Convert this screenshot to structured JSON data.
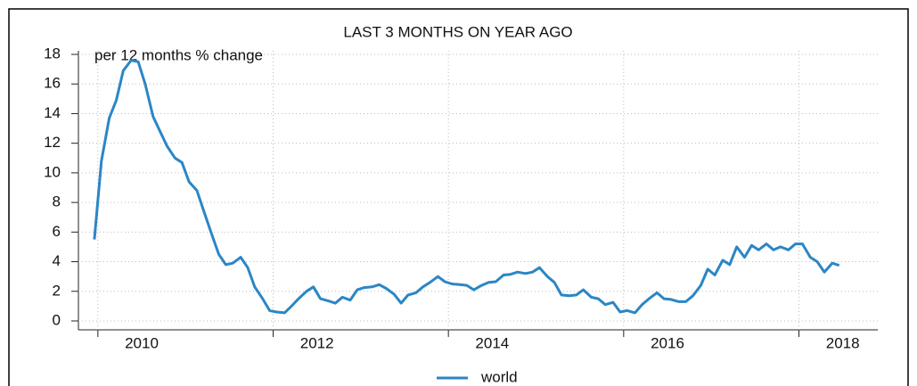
{
  "chart_data": {
    "type": "line",
    "title": "LAST 3 MONTHS ON YEAR AGO",
    "subtitle": "per 12 months % change",
    "x": [
      2009.96,
      2010.04,
      2010.13,
      2010.21,
      2010.29,
      2010.38,
      2010.46,
      2010.54,
      2010.63,
      2010.71,
      2010.79,
      2010.88,
      2010.96,
      2011.04,
      2011.13,
      2011.21,
      2011.29,
      2011.38,
      2011.46,
      2011.54,
      2011.63,
      2011.71,
      2011.79,
      2011.88,
      2011.96,
      2012.04,
      2012.13,
      2012.21,
      2012.29,
      2012.38,
      2012.46,
      2012.54,
      2012.63,
      2012.71,
      2012.79,
      2012.88,
      2012.96,
      2013.04,
      2013.13,
      2013.21,
      2013.29,
      2013.38,
      2013.46,
      2013.54,
      2013.63,
      2013.71,
      2013.79,
      2013.88,
      2013.96,
      2014.04,
      2014.13,
      2014.21,
      2014.29,
      2014.38,
      2014.46,
      2014.54,
      2014.63,
      2014.71,
      2014.79,
      2014.88,
      2014.96,
      2015.04,
      2015.13,
      2015.21,
      2015.29,
      2015.38,
      2015.46,
      2015.54,
      2015.63,
      2015.71,
      2015.79,
      2015.88,
      2015.96,
      2016.04,
      2016.13,
      2016.21,
      2016.29,
      2016.38,
      2016.46,
      2016.54,
      2016.63,
      2016.71,
      2016.79,
      2016.88,
      2016.96,
      2017.04,
      2017.13,
      2017.21,
      2017.29,
      2017.38,
      2017.46,
      2017.54,
      2017.63,
      2017.71,
      2017.79,
      2017.88,
      2017.96,
      2018.04,
      2018.13,
      2018.21,
      2018.29,
      2018.38,
      2018.46
    ],
    "series": [
      {
        "name": "world",
        "color": "#2b86c5",
        "values": [
          5.5,
          10.8,
          13.7,
          14.9,
          16.9,
          17.6,
          17.5,
          16.0,
          13.8,
          12.8,
          11.8,
          11.0,
          10.7,
          9.4,
          8.8,
          7.4,
          6.0,
          4.5,
          3.8,
          3.9,
          4.3,
          3.6,
          2.3,
          1.5,
          0.7,
          0.6,
          0.55,
          1.0,
          1.5,
          2.0,
          2.3,
          1.5,
          1.35,
          1.2,
          1.6,
          1.4,
          2.1,
          2.25,
          2.3,
          2.45,
          2.2,
          1.8,
          1.2,
          1.75,
          1.9,
          2.3,
          2.6,
          3.0,
          2.65,
          2.5,
          2.45,
          2.4,
          2.1,
          2.4,
          2.6,
          2.65,
          3.1,
          3.15,
          3.3,
          3.2,
          3.3,
          3.6,
          3.0,
          2.6,
          1.75,
          1.7,
          1.75,
          2.1,
          1.6,
          1.5,
          1.1,
          1.25,
          0.6,
          0.7,
          0.55,
          1.1,
          1.5,
          1.9,
          1.5,
          1.45,
          1.3,
          1.3,
          1.7,
          2.4,
          3.5,
          3.1,
          4.1,
          3.8,
          5.0,
          4.3,
          5.1,
          4.8,
          5.2,
          4.8,
          5.0,
          4.8,
          5.2,
          5.2,
          4.3,
          4.0,
          3.3,
          3.9,
          3.75
        ]
      }
    ],
    "xlim": [
      2009.9,
      2018.9
    ],
    "xticks": [
      2010,
      2012,
      2014,
      2016,
      2018
    ],
    "ylim": [
      0,
      18
    ],
    "yticks": [
      0,
      2,
      4,
      6,
      8,
      10,
      12,
      14,
      16,
      18
    ],
    "grid": true,
    "legend": "bottom"
  }
}
